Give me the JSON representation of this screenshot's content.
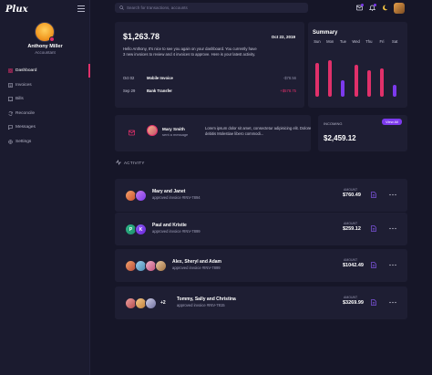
{
  "app": {
    "logo_text": "Plux"
  },
  "profile": {
    "name": "Anthony Miller",
    "role": "Accountant"
  },
  "nav": [
    {
      "label": "Dashboard",
      "icon": "dashboard-icon",
      "active": true
    },
    {
      "label": "Invoices",
      "icon": "invoice-icon"
    },
    {
      "label": "Bills",
      "icon": "bills-icon"
    },
    {
      "label": "Reconcile",
      "icon": "reconcile-icon"
    },
    {
      "label": "Messages",
      "icon": "message-icon"
    },
    {
      "label": "Settings",
      "icon": "gear-icon"
    }
  ],
  "search": {
    "placeholder": "Search for transactions, accounts"
  },
  "balance": {
    "amount": "$1,263.78",
    "date": "Oct 22, 2019",
    "message": "Hello Anthony, It's nice to see you again on your dashboard. You currently have 3 new invoices to review and 4 invoices to approve. Here is your latest activity.",
    "transactions": [
      {
        "date": "Oct 02",
        "name": "Mobile Invoice",
        "amount": "-$78.56"
      },
      {
        "date": "Sep 29",
        "name": "Bank Transfer",
        "amount": "+$578.75"
      }
    ]
  },
  "summary": {
    "title": "Summary",
    "days": [
      "Sun",
      "Mon",
      "Tue",
      "Wed",
      "Thu",
      "Fri",
      "Sat"
    ],
    "bars": [
      {
        "value": 0.66,
        "color": "#e0306a"
      },
      {
        "value": 0.72,
        "color": "#e0306a"
      },
      {
        "value": 0.32,
        "color": "#7c3aed"
      },
      {
        "value": 0.62,
        "color": "#e0306a"
      },
      {
        "value": 0.52,
        "color": "#e0306a"
      },
      {
        "value": 0.56,
        "color": "#e0306a"
      },
      {
        "value": 0.24,
        "color": "#7c3aed"
      }
    ]
  },
  "message": {
    "name": "Mary Smith",
    "subtitle": "sent a message",
    "text": "Lorem ipsum dolor sit amet, consectetur adipisicing elit. Dolore debitis Molestiae libero commodi..."
  },
  "incoming": {
    "label": "INCOMING",
    "button": "View All",
    "amount": "$2,459.12"
  },
  "activity": {
    "title": "ACTIVITY",
    "amount_label": "AMOUNT",
    "items": [
      {
        "names": "Mary and Janet",
        "sub": "approved invoice #INV-7894",
        "amount": "$760.49",
        "avatars": [
          {
            "c1": "#f6a36a",
            "c2": "#c9502e",
            "t": ""
          },
          {
            "c1": "#c27be8",
            "c2": "#7c3aed",
            "t": ""
          }
        ],
        "more": ""
      },
      {
        "names": "Paul and Kristie",
        "sub": "approved invoice #INV-7899",
        "amount": "$259.12",
        "avatars": [
          {
            "c1": "#2eb88a",
            "c2": "#1f8f6a",
            "t": "P"
          },
          {
            "c1": "#8b5cf6",
            "c2": "#6d28d9",
            "t": "K"
          }
        ],
        "more": ""
      },
      {
        "names": "Alex, Sheryl and Adam",
        "sub": "approved invoice #INV-7899",
        "amount": "$1042.49",
        "avatars": [
          {
            "c1": "#f6a36a",
            "c2": "#b24a3a",
            "t": ""
          },
          {
            "c1": "#9ad0f0",
            "c2": "#4a8ab0",
            "t": ""
          },
          {
            "c1": "#f0b0c8",
            "c2": "#c0507a",
            "t": ""
          },
          {
            "c1": "#e8c8a0",
            "c2": "#a07040",
            "t": ""
          }
        ],
        "more": ""
      },
      {
        "names": "Tommy, Sally and Christina",
        "sub": "approved invoice #INV-7815",
        "amount": "$3269.99",
        "avatars": [
          {
            "c1": "#f0a0a0",
            "c2": "#b04a4a",
            "t": ""
          },
          {
            "c1": "#f6c98a",
            "c2": "#c0803a",
            "t": ""
          },
          {
            "c1": "#d0d0e8",
            "c2": "#7070a0",
            "t": ""
          }
        ],
        "more": "+2"
      }
    ]
  }
}
